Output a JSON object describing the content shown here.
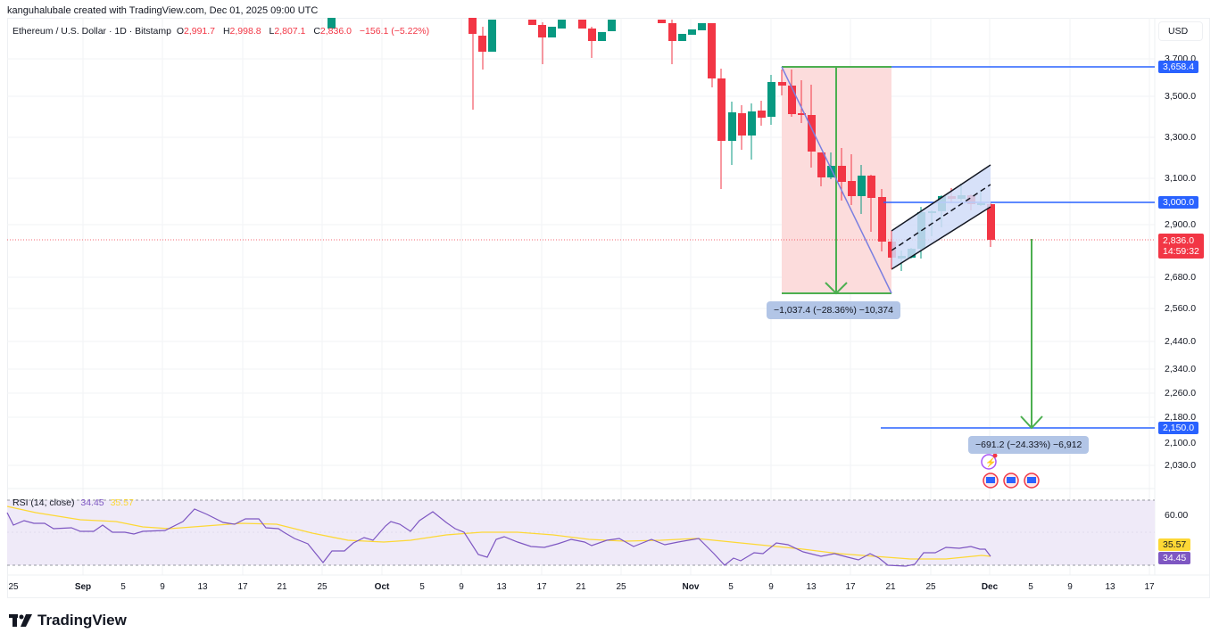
{
  "header": {
    "credit": "kanguhalubale created with TradingView.com, Dec 01, 2025 09:00 UTC",
    "symbol": "Ethereum / U.S. Dollar · 1D · Bitstamp",
    "ohlc": {
      "o_label": "O",
      "o": "2,991.7",
      "h_label": "H",
      "h": "2,998.8",
      "l_label": "L",
      "l": "2,807.1",
      "c_label": "C",
      "c": "2,836.0",
      "change": "−156.1 (−5.22%)"
    },
    "currency": "USD"
  },
  "price_axis": {
    "ticks": [
      "3,700.0",
      "3,500.0",
      "3,300.0",
      "3,100.0",
      "2,900.0",
      "2,680.0",
      "2,560.0",
      "2,440.0",
      "2,340.0",
      "2,260.0",
      "2,180.0",
      "2,100.0",
      "2,030.0"
    ],
    "tags": {
      "level_high": "3,658.4",
      "level_3000": "3,000.0",
      "current_price": "2,836.0",
      "countdown": "14:59:32",
      "target": "2,150.0"
    }
  },
  "annotations": {
    "measure_1": "−1,037.4 (−28.36%) −10,374",
    "measure_2": "−691.2 (−24.33%) −6,912"
  },
  "rsi": {
    "label": "RSI (14, close)",
    "value": "34.45",
    "ma_value": "35.57",
    "axis_tick": "60.00",
    "tag_ma": "35.57",
    "tag_rsi": "34.45"
  },
  "time_axis": {
    "ticks": [
      {
        "label": "25",
        "x": 15,
        "bold": false
      },
      {
        "label": "Sep",
        "x": 93,
        "bold": true
      },
      {
        "label": "5",
        "x": 138,
        "bold": false
      },
      {
        "label": "9",
        "x": 182,
        "bold": false
      },
      {
        "label": "13",
        "x": 227,
        "bold": false
      },
      {
        "label": "17",
        "x": 272,
        "bold": false
      },
      {
        "label": "21",
        "x": 316,
        "bold": false
      },
      {
        "label": "25",
        "x": 361,
        "bold": false
      },
      {
        "label": "Oct",
        "x": 428,
        "bold": true
      },
      {
        "label": "5",
        "x": 473,
        "bold": false
      },
      {
        "label": "9",
        "x": 517,
        "bold": false
      },
      {
        "label": "13",
        "x": 562,
        "bold": false
      },
      {
        "label": "17",
        "x": 607,
        "bold": false
      },
      {
        "label": "21",
        "x": 651,
        "bold": false
      },
      {
        "label": "25",
        "x": 696,
        "bold": false
      },
      {
        "label": "Nov",
        "x": 774,
        "bold": true
      },
      {
        "label": "5",
        "x": 819,
        "bold": false
      },
      {
        "label": "9",
        "x": 864,
        "bold": false
      },
      {
        "label": "13",
        "x": 909,
        "bold": false
      },
      {
        "label": "17",
        "x": 953,
        "bold": false
      },
      {
        "label": "21",
        "x": 998,
        "bold": false
      },
      {
        "label": "25",
        "x": 1043,
        "bold": false
      },
      {
        "label": "Dec",
        "x": 1109,
        "bold": true
      },
      {
        "label": "5",
        "x": 1155,
        "bold": false
      },
      {
        "label": "9",
        "x": 1199,
        "bold": false
      },
      {
        "label": "13",
        "x": 1244,
        "bold": false
      },
      {
        "label": "17",
        "x": 1288,
        "bold": false
      }
    ]
  },
  "footer": {
    "logo_text": "TradingView"
  },
  "colors": {
    "up": "#089981",
    "down": "#f23645",
    "level_line": "#2962ff",
    "measure_green": "#4caf50",
    "rsi_line": "#7e57c2",
    "rsi_ma": "#fdd835",
    "zone_fill": "#fcdcdc",
    "channel_fill": "#d0dcf8"
  },
  "chart_data": {
    "type": "candlestick",
    "title": "Ethereum / U.S. Dollar · 1D · Bitstamp",
    "xlabel": "",
    "ylabel": "USD",
    "ylim": [
      2000,
      3750
    ],
    "x_range": [
      "Aug 25, 2025",
      "Dec 17, 2025"
    ],
    "last": {
      "open": 2991.7,
      "high": 2998.8,
      "low": 2807.1,
      "close": 2836.0,
      "change": -156.1,
      "change_pct": -5.22
    },
    "candles_visible_from_nov": [
      {
        "date": "Nov 3",
        "open": 3880,
        "close": 3580,
        "high": 3900,
        "low": 3520
      },
      {
        "date": "Nov 4",
        "open": 3580,
        "close": 3300,
        "high": 3600,
        "low": 3060
      },
      {
        "date": "Nov 5",
        "open": 3300,
        "close": 3420,
        "high": 3460,
        "low": 3200
      },
      {
        "date": "Nov 6",
        "open": 3420,
        "close": 3300,
        "high": 3450,
        "low": 3280
      },
      {
        "date": "Nov 7",
        "open": 3300,
        "close": 3430,
        "high": 3450,
        "low": 3250
      },
      {
        "date": "Nov 8",
        "open": 3430,
        "close": 3400,
        "high": 3470,
        "low": 3380
      },
      {
        "date": "Nov 9",
        "open": 3400,
        "close": 3580,
        "high": 3610,
        "low": 3390
      },
      {
        "date": "Nov 10",
        "open": 3580,
        "close": 3560,
        "high": 3658,
        "low": 3540
      },
      {
        "date": "Nov 11",
        "open": 3560,
        "close": 3420,
        "high": 3650,
        "low": 3390
      },
      {
        "date": "Nov 12",
        "open": 3430,
        "close": 3420,
        "high": 3600,
        "low": 3380
      },
      {
        "date": "Nov 13",
        "open": 3420,
        "close": 3220,
        "high": 3600,
        "low": 3140
      },
      {
        "date": "Nov 14",
        "open": 3220,
        "close": 3120,
        "high": 3230,
        "low": 3080
      },
      {
        "date": "Nov 15",
        "open": 3120,
        "close": 3170,
        "high": 3190,
        "low": 3100
      },
      {
        "date": "Nov 16",
        "open": 3170,
        "close": 3080,
        "high": 3220,
        "low": 3000
      },
      {
        "date": "Nov 17",
        "open": 3080,
        "close": 3020,
        "high": 3190,
        "low": 2950
      },
      {
        "date": "Nov 18",
        "open": 3020,
        "close": 3120,
        "high": 3140,
        "low": 2960
      },
      {
        "date": "Nov 19",
        "open": 3120,
        "close": 2960,
        "high": 3130,
        "low": 2890
      },
      {
        "date": "Nov 20",
        "open": 3010,
        "close": 2760,
        "high": 3040,
        "low": 2740
      },
      {
        "date": "Nov 21",
        "open": 2800,
        "close": 2720,
        "high": 2800,
        "low": 2620
      },
      {
        "date": "Nov 22",
        "open": 2760,
        "close": 2750,
        "high": 2790,
        "low": 2690
      },
      {
        "date": "Nov 23",
        "open": 2760,
        "close": 2800,
        "high": 2810,
        "low": 2740
      },
      {
        "date": "Nov 24",
        "open": 2800,
        "close": 2960,
        "high": 2990,
        "low": 2790
      },
      {
        "date": "Nov 25",
        "open": 2960,
        "close": 2950,
        "high": 2980,
        "low": 2880
      },
      {
        "date": "Nov 26",
        "open": 2960,
        "close": 3020,
        "high": 3070,
        "low": 2930
      },
      {
        "date": "Nov 27",
        "open": 3020,
        "close": 3010,
        "high": 3070,
        "low": 3000
      },
      {
        "date": "Nov 28",
        "open": 3010,
        "close": 3030,
        "high": 3070,
        "low": 3000
      },
      {
        "date": "Nov 29",
        "open": 3020,
        "close": 2990,
        "high": 3060,
        "low": 2970
      },
      {
        "date": "Nov 30",
        "open": 2990,
        "close": 2992,
        "high": 3040,
        "low": 2980
      },
      {
        "date": "Dec 1",
        "open": 2991.7,
        "close": 2836.0,
        "high": 2998.8,
        "low": 2807.1
      }
    ],
    "horizontal_levels": [
      3658.4,
      3000.0,
      2150.0
    ],
    "measurements": [
      {
        "from": 3658.4,
        "to": 2621.0,
        "change": -1037.4,
        "change_pct": -28.36,
        "ticks": -10374
      },
      {
        "from": 2841.2,
        "to": 2150.0,
        "change": -691.2,
        "change_pct": -24.33,
        "ticks": -6912
      }
    ],
    "pattern": "ascending parallel channel (bear flag) Nov 21 – Nov 30",
    "rsi": {
      "period": 14,
      "value": 34.45,
      "ma": 35.57,
      "upper_band": 70,
      "lower_band": 30,
      "axis_tick": 60
    }
  }
}
